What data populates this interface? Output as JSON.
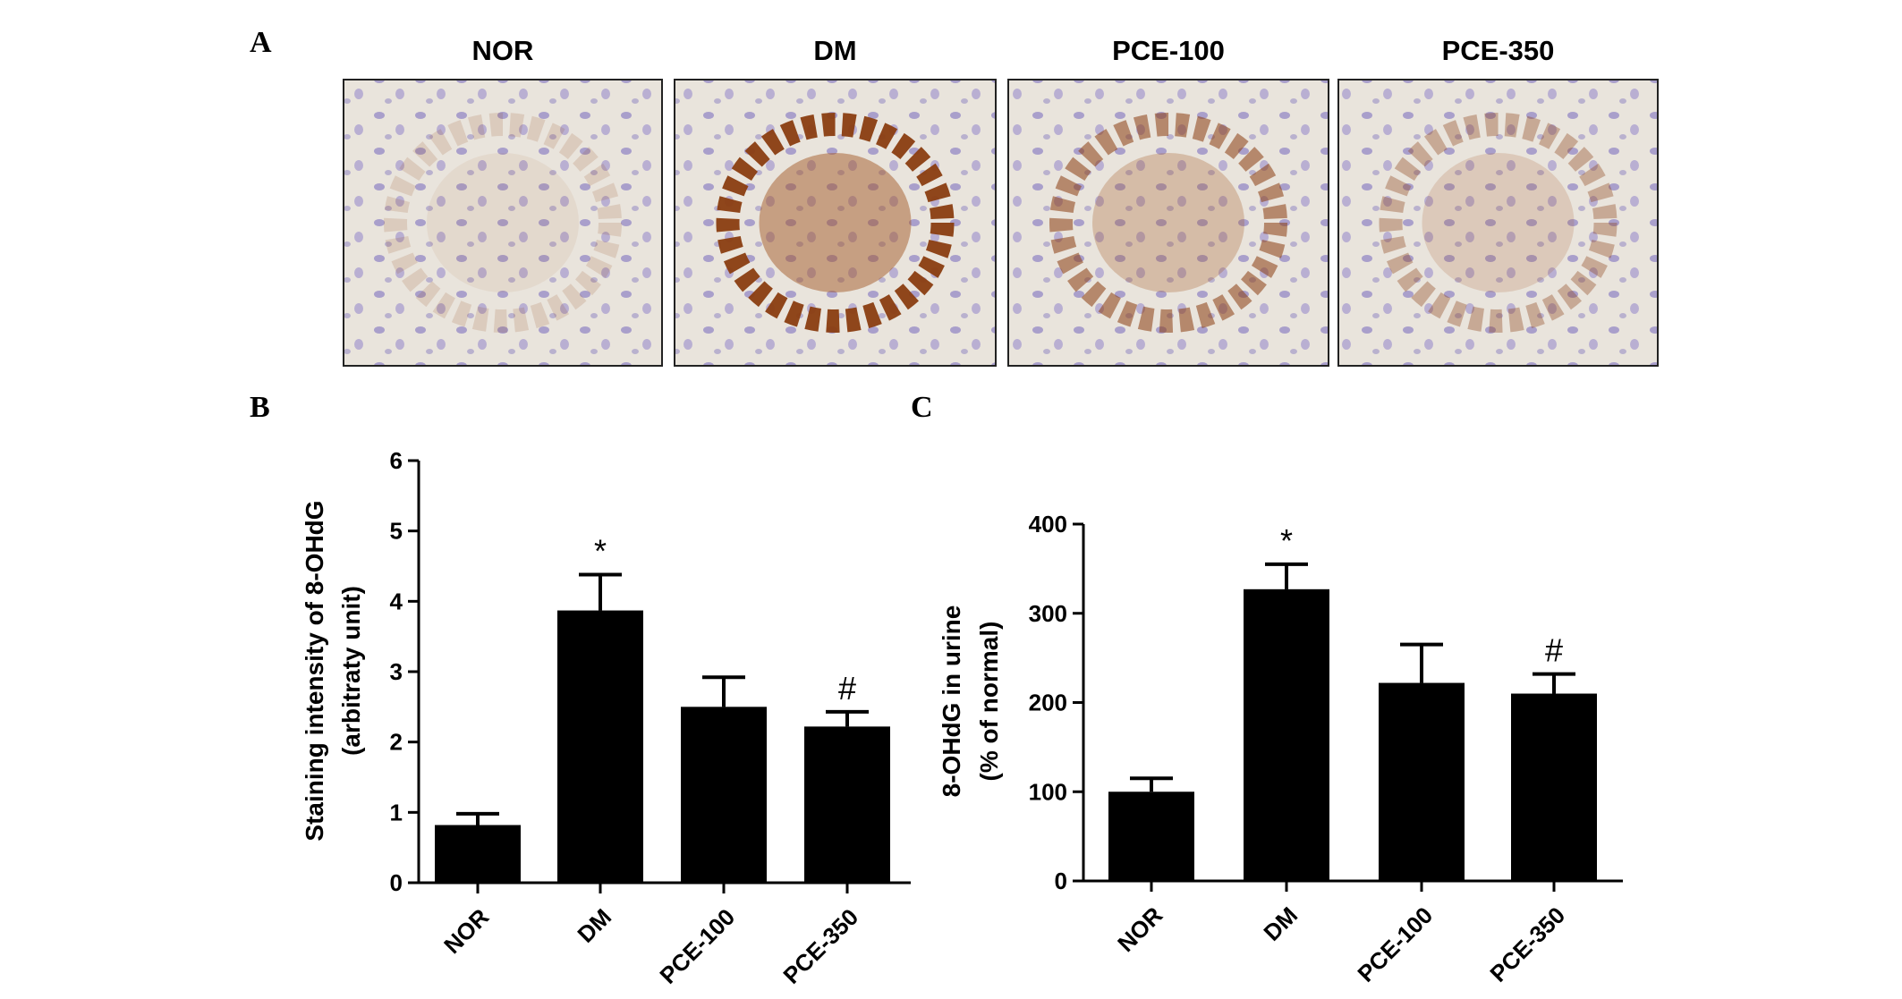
{
  "panel_labels": [
    "A",
    "B",
    "C"
  ],
  "image_titles": [
    "NOR",
    "DM",
    "PCE-100",
    "PCE-350"
  ],
  "chart_data": [
    {
      "type": "bar",
      "ylabel": [
        "Staining intensity of 8-OHdG",
        "(arbitraty unit)"
      ],
      "categories": [
        "NOR",
        "DM",
        "PCE-100",
        "PCE-350"
      ],
      "values": [
        0.82,
        3.87,
        2.5,
        2.22
      ],
      "errors": [
        0.16,
        0.51,
        0.42,
        0.21
      ],
      "bar_labels": [
        null,
        "*",
        null,
        "#"
      ],
      "color": "#000000",
      "ylim": [
        0,
        6
      ],
      "yticks": [
        0,
        1,
        2,
        3,
        4,
        5,
        6
      ],
      "grid": false
    },
    {
      "type": "bar",
      "ylabel": [
        "8-OHdG in urine",
        "(% of normal)"
      ],
      "categories": [
        "NOR",
        "DM",
        "PCE-100",
        "PCE-350"
      ],
      "values": [
        100,
        327,
        222,
        210
      ],
      "errors": [
        15,
        28,
        43,
        22
      ],
      "bar_labels": [
        null,
        "*",
        null,
        "#"
      ],
      "color": "#000000",
      "ylim": [
        0,
        400
      ],
      "yticks": [
        0,
        100,
        200,
        300,
        400
      ],
      "grid": false
    }
  ]
}
